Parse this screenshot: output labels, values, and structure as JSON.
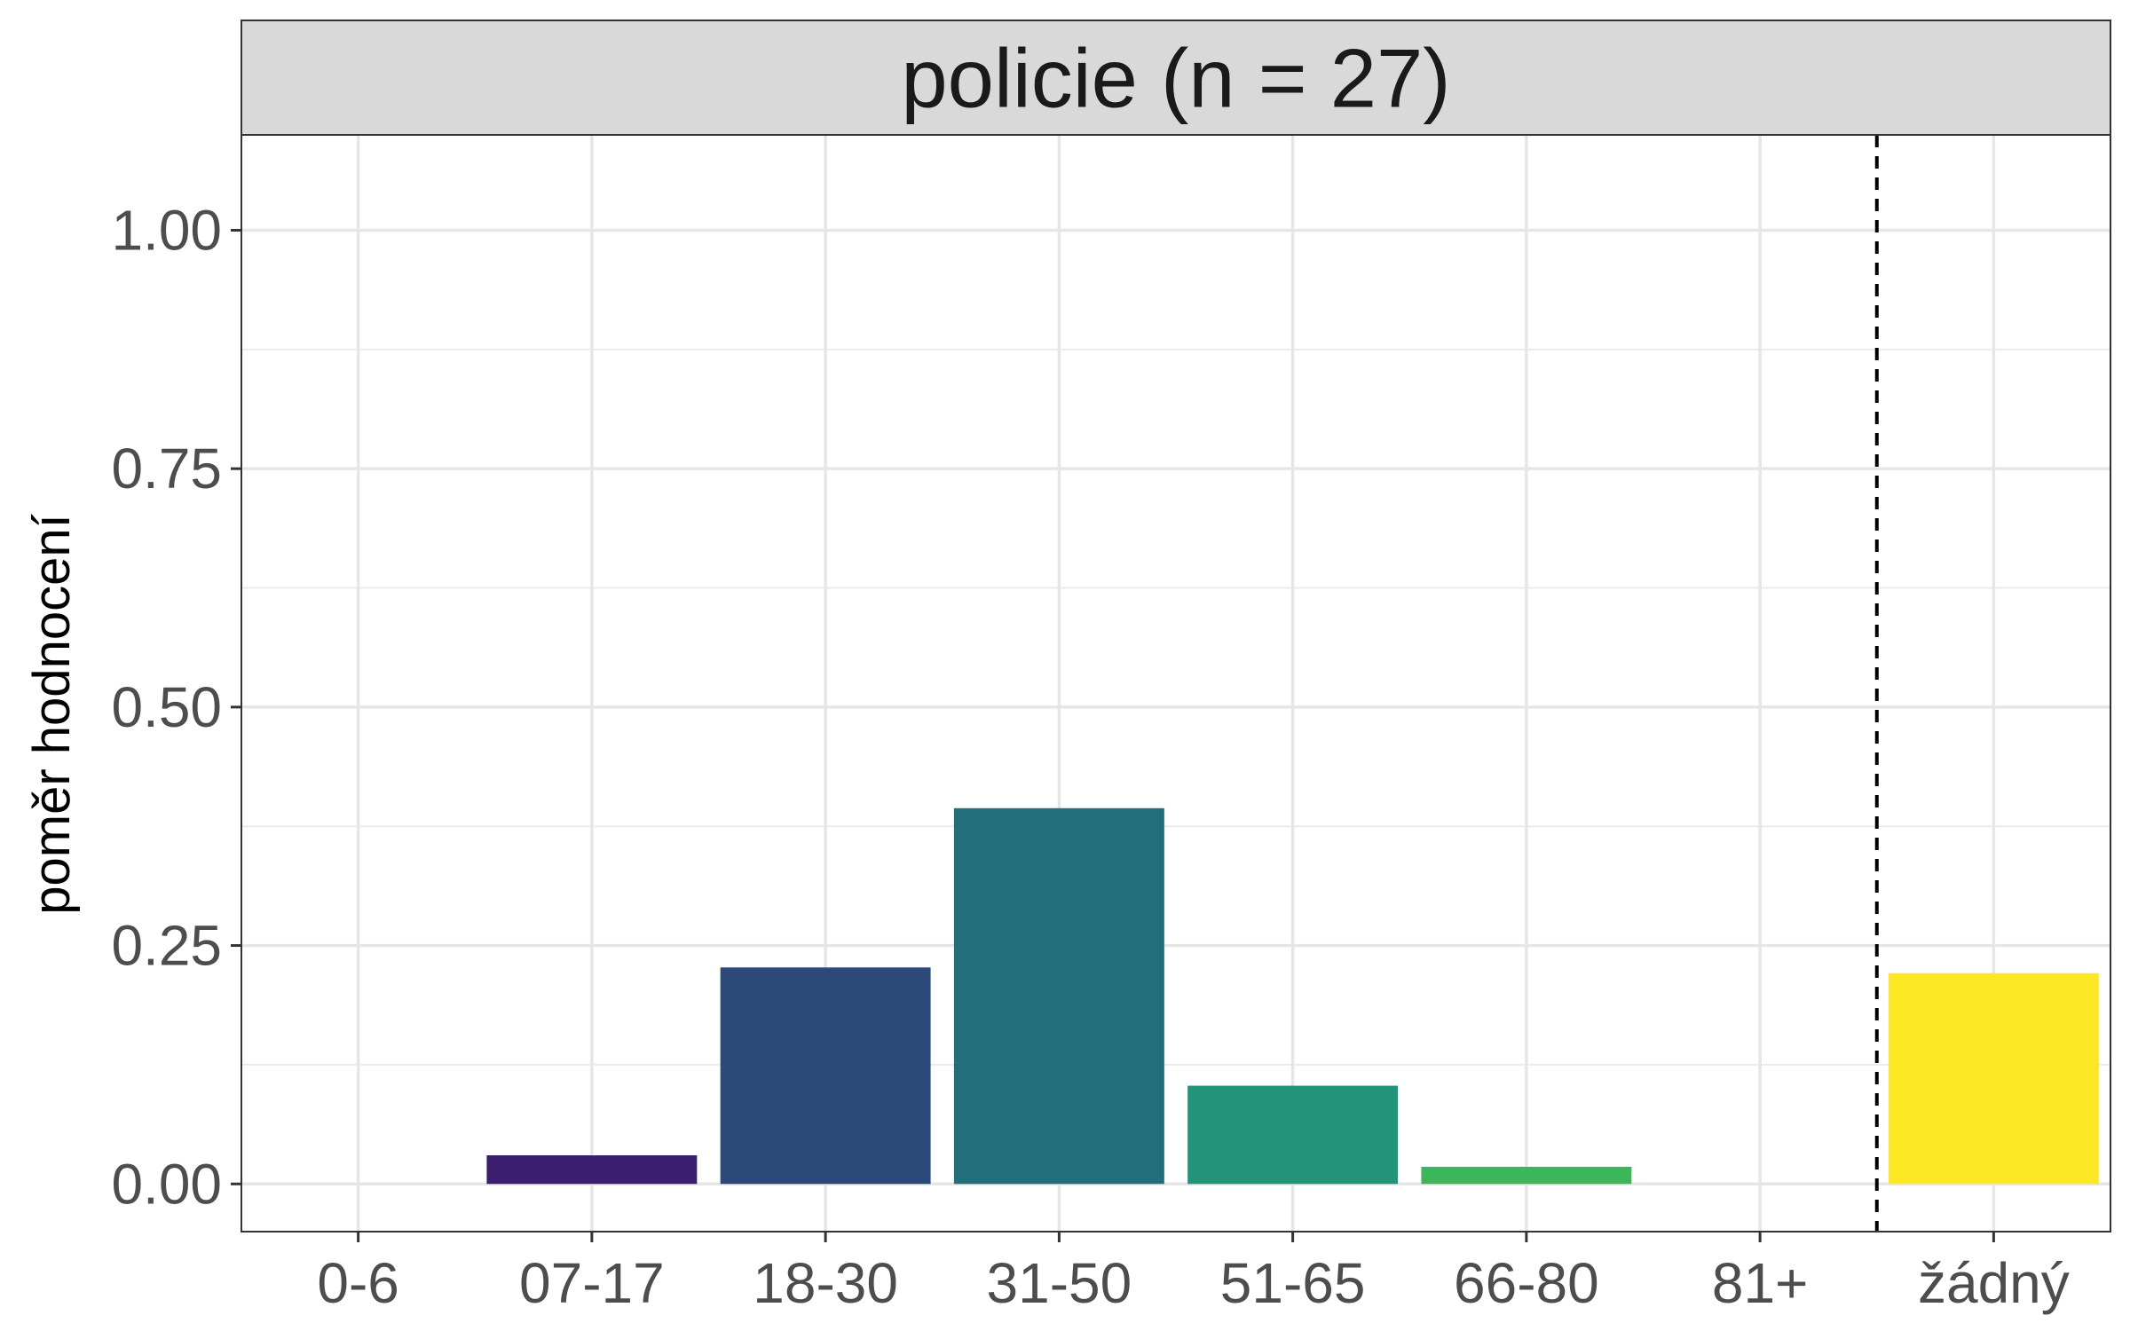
{
  "chart_data": {
    "type": "bar",
    "facet_title": "policie (n = 27)",
    "xlabel": "",
    "ylabel": "poměr hodnocení",
    "categories": [
      "0-6",
      "07-17",
      "18-30",
      "31-50",
      "51-65",
      "66-80",
      "81+",
      "žádný"
    ],
    "values": [
      0.0,
      0.03,
      0.227,
      0.394,
      0.103,
      0.018,
      0.0,
      0.221
    ],
    "colors": [
      "#440154",
      "#3B1F6E",
      "#2B4A7A",
      "#216F7B",
      "#22947A",
      "#3BB75A",
      "#8FD744",
      "#FDE725"
    ],
    "ylim": [
      -0.05,
      1.1
    ],
    "yticks": [
      0.0,
      0.25,
      0.5,
      0.75,
      1.0
    ],
    "ytick_labels": [
      "0.00",
      "0.25",
      "0.50",
      "0.75",
      "1.00"
    ],
    "reference_line": {
      "between": [
        "81+",
        "žádný"
      ],
      "style": "dashed"
    },
    "grid": true,
    "legend": "none"
  }
}
